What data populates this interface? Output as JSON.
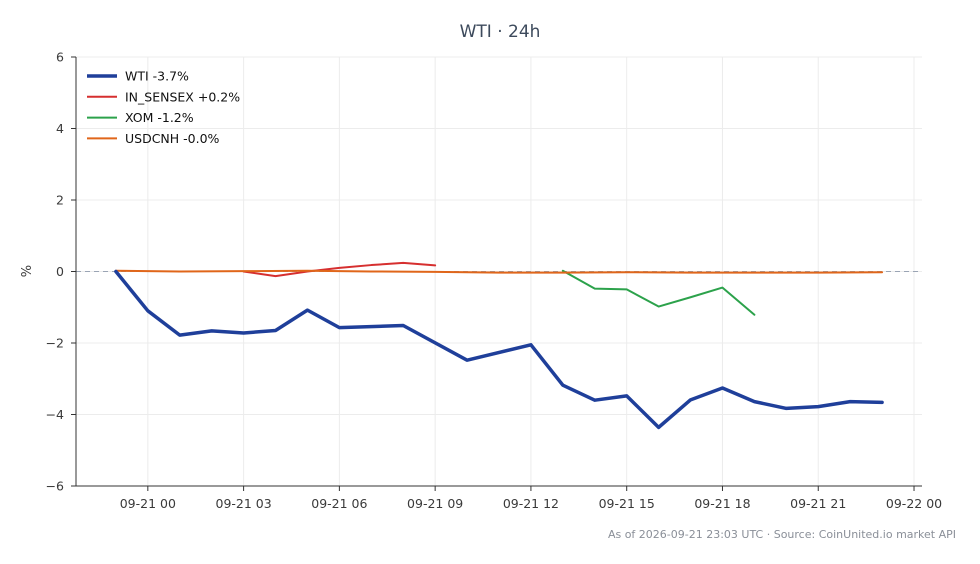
{
  "chart_data": {
    "type": "line",
    "title": "WTI · 24h",
    "xlabel": "",
    "ylabel": "%",
    "ylim": [
      -6,
      6
    ],
    "yticks": [
      6,
      4,
      2,
      0,
      -2,
      -4,
      -6
    ],
    "yticks_text": [
      "6",
      "4",
      "2",
      "0",
      "−2",
      "−4",
      "−6"
    ],
    "xlim": [
      "2026-09-20 21:45",
      "2026-09-22 00:15"
    ],
    "xticks": [
      "2026-09-21 00:00",
      "2026-09-21 03:00",
      "2026-09-21 06:00",
      "2026-09-21 09:00",
      "2026-09-21 12:00",
      "2026-09-21 15:00",
      "2026-09-21 18:00",
      "2026-09-21 21:00",
      "2026-09-22 00:00"
    ],
    "xticks_text": [
      "09-21 00",
      "09-21 03",
      "09-21 06",
      "09-21 09",
      "09-21 12",
      "09-21 15",
      "09-21 18",
      "09-21 21",
      "09-22 00"
    ],
    "grid": true,
    "zero_line": true,
    "legend_position": "top-left",
    "series": [
      {
        "name": "WTI -3.7%",
        "color": "#1f3f9a",
        "x": [
          "2026-09-20 23:00",
          "2026-09-21 00:00",
          "2026-09-21 01:00",
          "2026-09-21 02:00",
          "2026-09-21 03:00",
          "2026-09-21 04:00",
          "2026-09-21 05:00",
          "2026-09-21 06:00",
          "2026-09-21 08:00",
          "2026-09-21 10:00",
          "2026-09-21 12:00",
          "2026-09-21 13:00",
          "2026-09-21 14:00",
          "2026-09-21 15:00",
          "2026-09-21 16:00",
          "2026-09-21 17:00",
          "2026-09-21 18:00",
          "2026-09-21 19:00",
          "2026-09-21 20:00",
          "2026-09-21 21:00",
          "2026-09-21 22:00",
          "2026-09-21 23:00"
        ],
        "y": [
          0.0,
          -1.1,
          -1.78,
          -1.66,
          -1.72,
          -1.65,
          -1.08,
          -1.57,
          -1.51,
          -2.48,
          -2.05,
          -3.18,
          -3.6,
          -3.48,
          -4.36,
          -3.59,
          -3.26,
          -3.64,
          -3.83,
          -3.78,
          -3.64,
          -3.66
        ]
      },
      {
        "name": "IN_SENSEX +0.2%",
        "color": "#d62f2f",
        "x": [
          "2026-09-21 03:00",
          "2026-09-21 04:00",
          "2026-09-21 05:00",
          "2026-09-21 06:00",
          "2026-09-21 07:00",
          "2026-09-21 08:00",
          "2026-09-21 09:00"
        ],
        "y": [
          0.0,
          -0.13,
          0.0,
          0.1,
          0.18,
          0.24,
          0.17
        ]
      },
      {
        "name": "XOM -1.2%",
        "color": "#2ca24b",
        "x": [
          "2026-09-21 13:00",
          "2026-09-21 14:00",
          "2026-09-21 15:00",
          "2026-09-21 16:00",
          "2026-09-21 17:00",
          "2026-09-21 18:00",
          "2026-09-21 19:00"
        ],
        "y": [
          0.02,
          -0.48,
          -0.5,
          -0.98,
          -0.72,
          -0.45,
          -1.21
        ]
      },
      {
        "name": "USDCNH -0.0%",
        "color": "#e0661a",
        "x": [
          "2026-09-20 23:00",
          "2026-09-21 01:00",
          "2026-09-21 03:00",
          "2026-09-21 05:00",
          "2026-09-21 07:00",
          "2026-09-21 09:00",
          "2026-09-21 11:00",
          "2026-09-21 13:00",
          "2026-09-21 15:00",
          "2026-09-21 17:00",
          "2026-09-21 19:00",
          "2026-09-21 21:00",
          "2026-09-21 23:00"
        ],
        "y": [
          0.02,
          0.0,
          0.01,
          0.02,
          0.0,
          -0.01,
          -0.03,
          -0.03,
          -0.02,
          -0.03,
          -0.03,
          -0.03,
          -0.02
        ]
      }
    ]
  },
  "footer": {
    "note": "As of 2026-09-21 23:03 UTC · Source: CoinUnited.io market API"
  }
}
